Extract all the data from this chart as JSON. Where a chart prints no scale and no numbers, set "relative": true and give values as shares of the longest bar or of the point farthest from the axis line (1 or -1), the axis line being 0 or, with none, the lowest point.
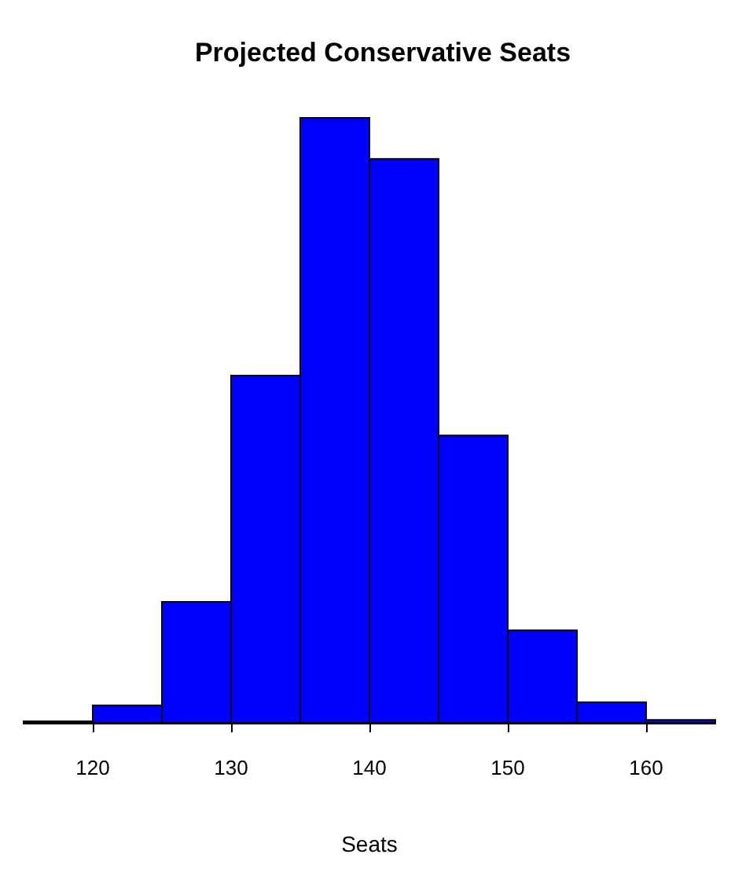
{
  "chart_data": {
    "type": "bar",
    "title": "Projected Conservative Seats",
    "xlabel": "Seats",
    "relative": true,
    "color": "#0000ff",
    "x": [
      117.5,
      122.5,
      127.5,
      132.5,
      137.5,
      142.5,
      147.5,
      152.5,
      157.5,
      162.5
    ],
    "values": [
      0,
      0.029,
      0.2,
      0.574,
      1,
      0.932,
      0.475,
      0.153,
      0.034,
      0.005
    ],
    "xlim": [
      115,
      165
    ],
    "xticks": [
      120,
      130,
      140,
      150,
      160
    ],
    "grid": false
  }
}
